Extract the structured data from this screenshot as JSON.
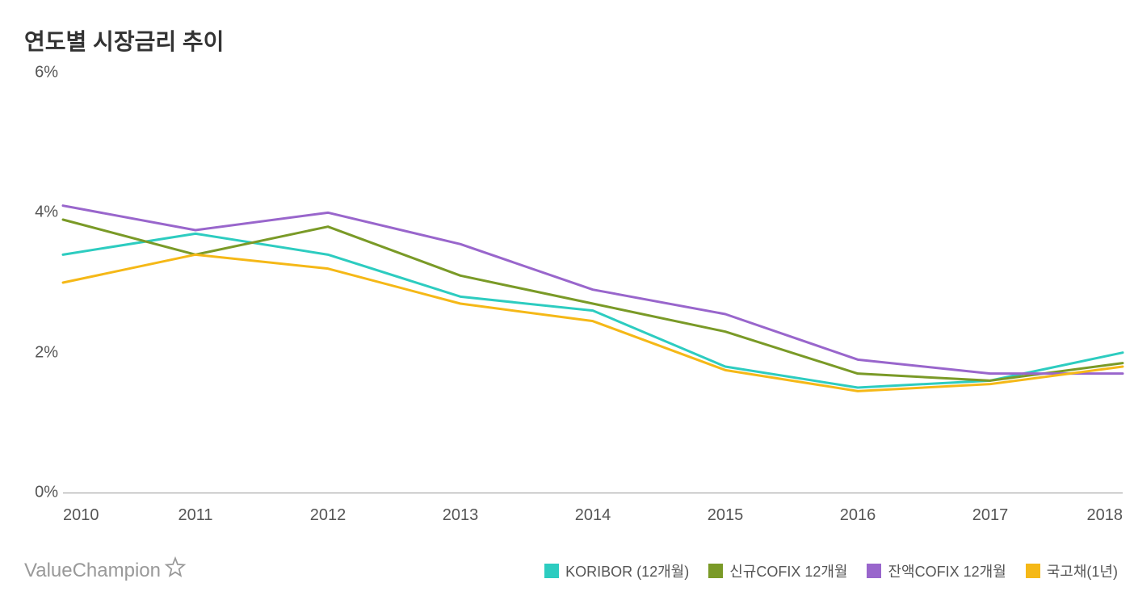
{
  "title": "연도별 시장금리 추이",
  "title_fontsize": 28,
  "brand": "ValueChampion",
  "chart": {
    "type": "line",
    "background_color": "#ffffff",
    "baseline_color": "#999999",
    "text_color": "#555555",
    "axis_fontsize": 20,
    "legend_fontsize": 18,
    "brand_fontsize": 24,
    "line_width": 3,
    "xlim": [
      2010,
      2018
    ],
    "x_ticks": [
      2010,
      2011,
      2012,
      2013,
      2014,
      2015,
      2016,
      2017,
      2018
    ],
    "ylim": [
      0,
      6
    ],
    "y_ticks": [
      0,
      2,
      4,
      6
    ],
    "y_tick_format": "%",
    "series": [
      {
        "name": "KORIBOR (12개월)",
        "color": "#2dccc0",
        "x": [
          2010,
          2011,
          2012,
          2013,
          2014,
          2015,
          2016,
          2017,
          2018
        ],
        "y": [
          3.4,
          3.7,
          3.4,
          2.8,
          2.6,
          1.8,
          1.5,
          1.6,
          2.0
        ]
      },
      {
        "name": "신규COFIX 12개월",
        "color": "#7a9a27",
        "x": [
          2010,
          2011,
          2012,
          2013,
          2014,
          2015,
          2016,
          2017,
          2018
        ],
        "y": [
          3.9,
          3.4,
          3.8,
          3.1,
          2.7,
          2.3,
          1.7,
          1.6,
          1.85
        ]
      },
      {
        "name": "잔액COFIX 12개월",
        "color": "#9966cc",
        "x": [
          2010,
          2011,
          2012,
          2013,
          2014,
          2015,
          2016,
          2017,
          2018
        ],
        "y": [
          4.1,
          3.75,
          4.0,
          3.55,
          2.9,
          2.55,
          1.9,
          1.7,
          1.7
        ]
      },
      {
        "name": "국고채(1년)",
        "color": "#f5b817",
        "x": [
          2010,
          2011,
          2012,
          2013,
          2014,
          2015,
          2016,
          2017,
          2018
        ],
        "y": [
          3.0,
          3.4,
          3.2,
          2.7,
          2.45,
          1.75,
          1.45,
          1.55,
          1.8
        ]
      }
    ]
  }
}
